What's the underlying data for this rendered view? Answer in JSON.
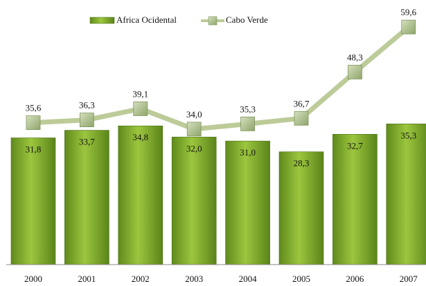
{
  "chart_data": {
    "type": "bar",
    "categories": [
      "2000",
      "2001",
      "2002",
      "2003",
      "2004",
      "2005",
      "2006",
      "2007"
    ],
    "series": [
      {
        "name": "Africa Ocidental",
        "type": "bar",
        "color": "#7aa52a",
        "values": [
          31.8,
          33.7,
          34.8,
          32.0,
          31.0,
          28.3,
          32.7,
          35.3
        ],
        "value_labels": [
          "31,8",
          "33,7",
          "34,8",
          "32,0",
          "31,0",
          "28,3",
          "32,7",
          "35,3"
        ]
      },
      {
        "name": "Cabo Verde",
        "type": "line",
        "color": "#bccb98",
        "values": [
          35.6,
          36.3,
          39.1,
          34.0,
          35.3,
          36.7,
          48.3,
          59.6
        ],
        "value_labels": [
          "35,6",
          "36,3",
          "39,1",
          "34,0",
          "35,3",
          "36,7",
          "48,3",
          "59,6"
        ]
      }
    ],
    "ylim": [
      0,
      65
    ],
    "legend": "top"
  }
}
